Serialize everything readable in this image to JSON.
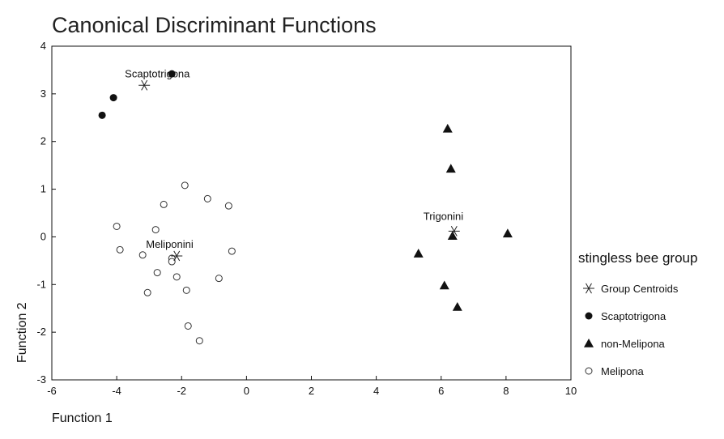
{
  "chart_data": {
    "type": "scatter",
    "title": "Canonical Discriminant Functions",
    "xlabel": "Function 1",
    "ylabel": "Function 2",
    "xlim": [
      -6,
      10
    ],
    "ylim": [
      -3,
      4
    ],
    "xticks": [
      "-6",
      "-4",
      "-2",
      "0",
      "2",
      "4",
      "6",
      "8",
      "10"
    ],
    "yticks": [
      "-3",
      "-2",
      "-1",
      "0",
      "1",
      "2",
      "3",
      "4"
    ],
    "grid": false,
    "legend": {
      "title": "stingless bee group",
      "placement": "right",
      "entries": [
        "Group Centroids",
        "Scaptotrigona",
        "non-Melipona",
        "Melipona"
      ]
    },
    "series": [
      {
        "name": "Scaptotrigona",
        "marker": "filled-circle",
        "points": [
          [
            -2.3,
            3.42
          ],
          [
            -4.1,
            2.92
          ],
          [
            -4.45,
            2.55
          ]
        ]
      },
      {
        "name": "non-Melipona",
        "marker": "filled-triangle",
        "points": [
          [
            6.2,
            2.27
          ],
          [
            6.3,
            1.43
          ],
          [
            8.05,
            0.07
          ],
          [
            6.35,
            0.02
          ],
          [
            5.3,
            -0.35
          ],
          [
            6.1,
            -1.02
          ],
          [
            6.5,
            -1.47
          ]
        ]
      },
      {
        "name": "Melipona",
        "marker": "open-circle",
        "points": [
          [
            -1.9,
            1.08
          ],
          [
            -1.2,
            0.8
          ],
          [
            -0.55,
            0.65
          ],
          [
            -2.55,
            0.68
          ],
          [
            -4.0,
            0.22
          ],
          [
            -2.8,
            0.15
          ],
          [
            -3.9,
            -0.27
          ],
          [
            -3.2,
            -0.38
          ],
          [
            -0.45,
            -0.3
          ],
          [
            -2.3,
            -0.45
          ],
          [
            -2.3,
            -0.52
          ],
          [
            -2.75,
            -0.75
          ],
          [
            -2.15,
            -0.84
          ],
          [
            -0.85,
            -0.87
          ],
          [
            -3.05,
            -1.17
          ],
          [
            -1.85,
            -1.12
          ],
          [
            -1.8,
            -1.87
          ],
          [
            -1.45,
            -2.18
          ]
        ]
      },
      {
        "name": "Group Centroids",
        "marker": "asterisk",
        "points": [
          [
            -3.15,
            3.18
          ],
          [
            -2.15,
            -0.4
          ],
          [
            6.4,
            0.12
          ]
        ]
      }
    ],
    "annotations": [
      {
        "text": "Scaptotrigona",
        "x": -3.15,
        "y": 3.18
      },
      {
        "text": "Meliponini",
        "x": -2.15,
        "y": -0.4
      },
      {
        "text": "Trigonini",
        "x": 6.4,
        "y": 0.12
      }
    ]
  }
}
